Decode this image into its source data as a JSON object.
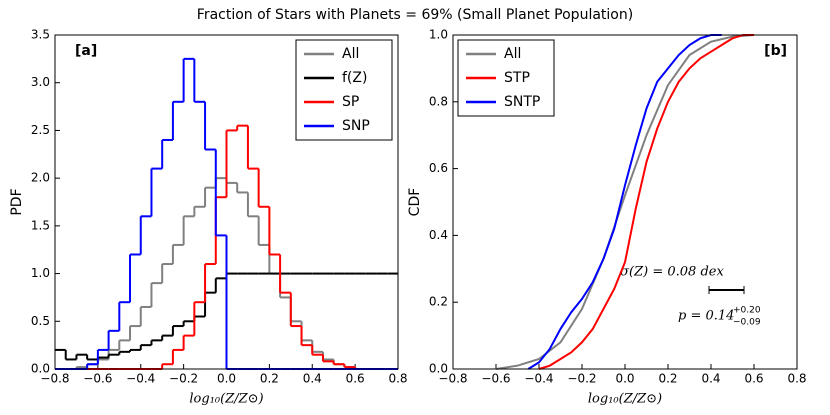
{
  "title": "Fraction of Stars with Planets = 69% (Small Planet Population)",
  "chart_data": [
    {
      "type": "histogram",
      "annotation": "[a]",
      "xlabel": "log₁₀(Z/Z⊙)",
      "ylabel": "PDF",
      "bins": [
        -0.8,
        -0.75,
        -0.7,
        -0.65,
        -0.6,
        -0.55,
        -0.5,
        -0.45,
        -0.4,
        -0.35,
        -0.3,
        -0.25,
        -0.2,
        -0.15,
        -0.1,
        -0.05,
        0,
        0.05,
        0.1,
        0.15,
        0.2,
        0.25,
        0.3,
        0.35,
        0.4,
        0.45,
        0.5,
        0.55,
        0.6,
        0.65,
        0.7,
        0.75,
        0.8
      ],
      "series": [
        {
          "name": "All",
          "color": "#808080",
          "values": [
            0,
            0,
            0.02,
            0.05,
            0.1,
            0.2,
            0.3,
            0.45,
            0.65,
            0.9,
            1.1,
            1.3,
            1.6,
            1.7,
            1.9,
            2.0,
            1.95,
            1.85,
            1.6,
            1.3,
            1.0,
            0.75,
            0.5,
            0.3,
            0.18,
            0.1,
            0.05,
            0.02,
            0,
            0,
            0,
            0
          ]
        },
        {
          "name": "f(Z)",
          "color": "#000000",
          "values": [
            0.2,
            0.1,
            0.15,
            0.1,
            0.12,
            0.15,
            0.18,
            0.2,
            0.25,
            0.3,
            0.35,
            0.45,
            0.5,
            0.55,
            0.8,
            0.95,
            1,
            1,
            1,
            1,
            1,
            1,
            1,
            1,
            1,
            1,
            1,
            1,
            1,
            1,
            1,
            1
          ]
        },
        {
          "name": "SP",
          "color": "#ff0000",
          "values": [
            0,
            0,
            0,
            0,
            0,
            0,
            0,
            0,
            0,
            0,
            0.05,
            0.2,
            0.35,
            0.7,
            1.1,
            1.8,
            2.5,
            2.55,
            2.1,
            1.7,
            1.2,
            0.8,
            0.45,
            0.25,
            0.15,
            0.08,
            0.05,
            0.02,
            0,
            0,
            0,
            0
          ]
        },
        {
          "name": "SNP",
          "color": "#0000ff",
          "values": [
            0,
            0,
            0,
            0.05,
            0.2,
            0.4,
            0.7,
            1.2,
            1.6,
            2.1,
            2.4,
            2.8,
            3.25,
            2.8,
            2.3,
            1.4,
            0,
            0,
            0,
            0,
            0,
            0,
            0,
            0,
            0,
            0,
            0,
            0,
            0,
            0,
            0,
            0
          ]
        }
      ],
      "xlim": [
        -0.8,
        0.8
      ],
      "xticks": [
        {
          "value": -0.8,
          "label": "−0.8"
        },
        {
          "value": -0.6,
          "label": "−0.6"
        },
        {
          "value": -0.4,
          "label": "−0.4"
        },
        {
          "value": -0.2,
          "label": "−0.2"
        },
        {
          "value": 0,
          "label": "0.0"
        },
        {
          "value": 0.2,
          "label": "0.2"
        },
        {
          "value": 0.4,
          "label": "0.4"
        },
        {
          "value": 0.6,
          "label": "0.6"
        },
        {
          "value": 0.8,
          "label": "0.8"
        }
      ],
      "ylim": [
        0,
        3.5
      ],
      "yticks": [
        {
          "value": 0,
          "label": "0.0"
        },
        0.5,
        {
          "value": 1,
          "label": "1.0"
        },
        1.5,
        {
          "value": 2,
          "label": "2.0"
        },
        2.5,
        {
          "value": 3,
          "label": "3.0"
        },
        3.5
      ],
      "legend": "upper right"
    },
    {
      "type": "line",
      "annotation": "[b]",
      "xlabel": "log₁₀(Z/Z⊙)",
      "ylabel": "CDF",
      "series": [
        {
          "name": "All",
          "color": "#808080",
          "x": [
            -0.6,
            -0.5,
            -0.4,
            -0.3,
            -0.2,
            -0.1,
            0,
            0.1,
            0.2,
            0.3,
            0.4,
            0.5,
            0.6
          ],
          "values": [
            0,
            0.01,
            0.03,
            0.08,
            0.18,
            0.33,
            0.52,
            0.7,
            0.85,
            0.94,
            0.98,
            0.995,
            1
          ]
        },
        {
          "name": "STP",
          "color": "#ff0000",
          "x": [
            -0.4,
            -0.35,
            -0.3,
            -0.25,
            -0.2,
            -0.15,
            -0.1,
            -0.05,
            0,
            0.05,
            0.1,
            0.15,
            0.2,
            0.25,
            0.3,
            0.35,
            0.4,
            0.45,
            0.5,
            0.55,
            0.6
          ],
          "values": [
            0,
            0.01,
            0.03,
            0.05,
            0.08,
            0.12,
            0.18,
            0.24,
            0.32,
            0.48,
            0.62,
            0.72,
            0.8,
            0.86,
            0.9,
            0.93,
            0.95,
            0.97,
            0.99,
            1,
            1
          ]
        },
        {
          "name": "SNTP",
          "color": "#0000ff",
          "x": [
            -0.45,
            -0.4,
            -0.35,
            -0.3,
            -0.25,
            -0.2,
            -0.15,
            -0.1,
            -0.05,
            0,
            0.05,
            0.1,
            0.15,
            0.2,
            0.25,
            0.3,
            0.35,
            0.4,
            0.45
          ],
          "values": [
            0,
            0.02,
            0.06,
            0.12,
            0.17,
            0.21,
            0.26,
            0.33,
            0.42,
            0.55,
            0.67,
            0.78,
            0.86,
            0.9,
            0.94,
            0.97,
            0.99,
            1,
            1
          ]
        }
      ],
      "xlim": [
        -0.8,
        0.8
      ],
      "xticks": [
        {
          "value": -0.8,
          "label": "−0.8"
        },
        {
          "value": -0.6,
          "label": "−0.6"
        },
        {
          "value": -0.4,
          "label": "−0.4"
        },
        {
          "value": -0.2,
          "label": "−0.2"
        },
        {
          "value": 0,
          "label": "0.0"
        },
        {
          "value": 0.2,
          "label": "0.2"
        },
        {
          "value": 0.4,
          "label": "0.4"
        },
        {
          "value": 0.6,
          "label": "0.6"
        },
        {
          "value": 0.8,
          "label": "0.8"
        }
      ],
      "ylim": [
        0,
        1
      ],
      "yticks": [
        {
          "value": 0,
          "label": "0.0"
        },
        0.2,
        0.4,
        0.6,
        0.8,
        {
          "value": 1,
          "label": "1.0"
        }
      ],
      "legend": "upper left",
      "notes": {
        "sigma": "σ(Z) = 0.08 dex",
        "p": "p = 0.14",
        "p_plus": "+0.20",
        "p_minus": "−0.09"
      }
    }
  ]
}
